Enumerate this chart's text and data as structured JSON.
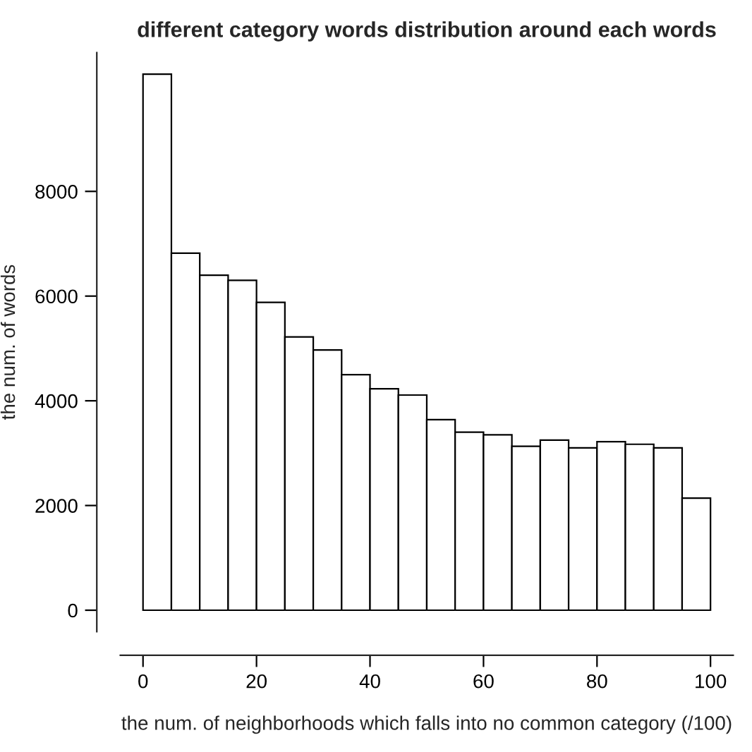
{
  "chart_data": {
    "type": "histogram",
    "title": "different category words distribution around each words",
    "xlabel": "the num. of neighborhoods which falls into no common category (/100)",
    "ylabel": "the num. of words",
    "bins": [
      0,
      5,
      10,
      15,
      20,
      25,
      30,
      35,
      40,
      45,
      50,
      55,
      60,
      65,
      70,
      75,
      80,
      85,
      90,
      95,
      100
    ],
    "values": [
      10240,
      6820,
      6400,
      6300,
      5880,
      5220,
      4970,
      4500,
      4230,
      4110,
      3640,
      3400,
      3350,
      3130,
      3250,
      3100,
      3220,
      3170,
      3100,
      2140
    ],
    "color": "#ffffff",
    "xlim": [
      -4,
      104
    ],
    "ylim": [
      -410,
      10650
    ],
    "xticks": [
      0,
      20,
      40,
      60,
      80,
      100
    ],
    "yticks": [
      0,
      2000,
      4000,
      6000,
      8000
    ],
    "grid": false
  }
}
